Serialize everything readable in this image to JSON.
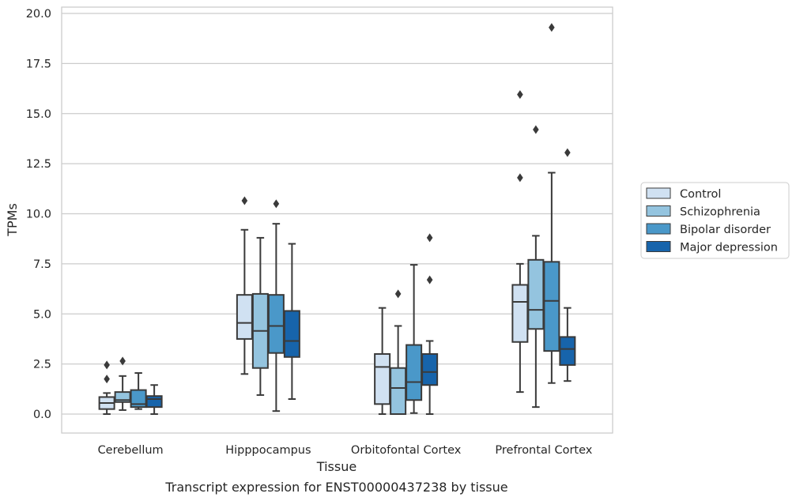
{
  "chart_data": {
    "type": "box",
    "xlabel": "Tissue",
    "ylabel": "TPMs",
    "caption": "Transcript expression for ENST00000437238 by tissue",
    "ylim": [
      -0.95,
      20.3
    ],
    "yticks": [
      0.0,
      2.5,
      5.0,
      7.5,
      10.0,
      12.5,
      15.0,
      17.5,
      20.0
    ],
    "ytick_labels": [
      "0.0",
      "2.5",
      "5.0",
      "7.5",
      "10.0",
      "12.5",
      "15.0",
      "17.5",
      "20.0"
    ],
    "grid": "horizontal",
    "legend_position": "right",
    "categories": [
      "Cerebellum",
      "Hipppocampus",
      "Orbitofontal Cortex",
      "Prefrontal Cortex"
    ],
    "series": [
      {
        "name": "Control",
        "color": "#d0e1f2",
        "boxes": [
          {
            "whisker_low": 0.0,
            "q1": 0.25,
            "median": 0.55,
            "q3": 0.85,
            "whisker_high": 1.05,
            "outliers": [
              1.75,
              2.45
            ]
          },
          {
            "whisker_low": 2.0,
            "q1": 3.75,
            "median": 4.55,
            "q3": 5.95,
            "whisker_high": 9.2,
            "outliers": [
              10.65
            ]
          },
          {
            "whisker_low": 0.0,
            "q1": 0.5,
            "median": 2.35,
            "q3": 3.0,
            "whisker_high": 5.3,
            "outliers": []
          },
          {
            "whisker_low": 1.1,
            "q1": 3.6,
            "median": 5.6,
            "q3": 6.45,
            "whisker_high": 7.5,
            "outliers": [
              11.8,
              15.95
            ]
          }
        ]
      },
      {
        "name": "Schizophrenia",
        "color": "#94c4df",
        "boxes": [
          {
            "whisker_low": 0.2,
            "q1": 0.6,
            "median": 0.7,
            "q3": 1.1,
            "whisker_high": 1.9,
            "outliers": [
              2.65
            ]
          },
          {
            "whisker_low": 0.95,
            "q1": 2.3,
            "median": 4.15,
            "q3": 6.0,
            "whisker_high": 8.8,
            "outliers": []
          },
          {
            "whisker_low": 0.0,
            "q1": 0.0,
            "median": 1.3,
            "q3": 2.3,
            "whisker_high": 4.4,
            "outliers": [
              6.0
            ]
          },
          {
            "whisker_low": 0.35,
            "q1": 4.25,
            "median": 5.2,
            "q3": 7.7,
            "whisker_high": 8.9,
            "outliers": [
              14.2
            ]
          }
        ]
      },
      {
        "name": "Bipolar disorder",
        "color": "#4a98c9",
        "boxes": [
          {
            "whisker_low": 0.25,
            "q1": 0.35,
            "median": 0.5,
            "q3": 1.2,
            "whisker_high": 2.05,
            "outliers": []
          },
          {
            "whisker_low": 0.15,
            "q1": 3.05,
            "median": 4.4,
            "q3": 5.95,
            "whisker_high": 9.5,
            "outliers": [
              10.5
            ]
          },
          {
            "whisker_low": 0.05,
            "q1": 0.7,
            "median": 1.6,
            "q3": 3.45,
            "whisker_high": 7.45,
            "outliers": []
          },
          {
            "whisker_low": 1.55,
            "q1": 3.15,
            "median": 5.65,
            "q3": 7.6,
            "whisker_high": 12.05,
            "outliers": [
              19.3
            ]
          }
        ]
      },
      {
        "name": "Major depression",
        "color": "#1764ab",
        "boxes": [
          {
            "whisker_low": 0.0,
            "q1": 0.35,
            "median": 0.75,
            "q3": 0.9,
            "whisker_high": 1.45,
            "outliers": []
          },
          {
            "whisker_low": 0.75,
            "q1": 2.85,
            "median": 3.65,
            "q3": 5.15,
            "whisker_high": 8.5,
            "outliers": []
          },
          {
            "whisker_low": 0.0,
            "q1": 1.45,
            "median": 2.1,
            "q3": 3.0,
            "whisker_high": 3.65,
            "outliers": [
              6.7,
              8.8
            ]
          },
          {
            "whisker_low": 1.65,
            "q1": 2.45,
            "median": 3.25,
            "q3": 3.85,
            "whisker_high": 5.3,
            "outliers": [
              13.05
            ]
          }
        ]
      }
    ]
  }
}
